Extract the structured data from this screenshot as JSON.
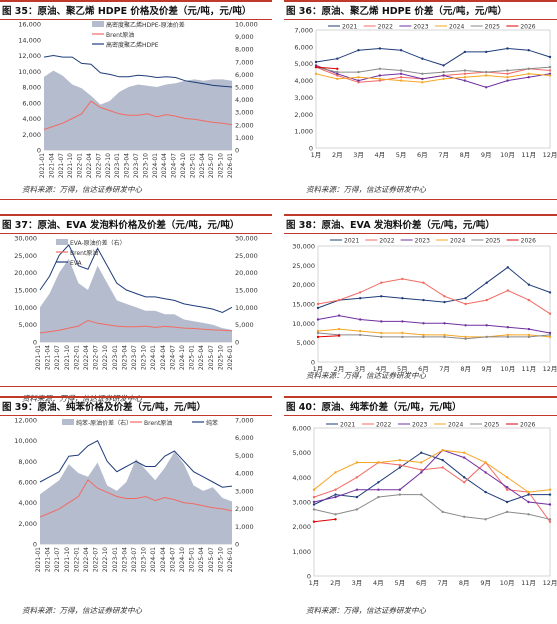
{
  "source_text": "资料来源：万得，信达证券研发中心",
  "panels": [
    {
      "id": "p35",
      "title": "图 35：原油、聚乙烯 HDPE 价格及价差（元/吨，元/吨）"
    },
    {
      "id": "p36",
      "title": "图 36：原油、聚乙烯 HDPE 价差（元/吨，元/吨）"
    },
    {
      "id": "p37",
      "title": "图 37：原油、EVA 发泡料价格及价差（元/吨，元/吨）"
    },
    {
      "id": "p38",
      "title": "图 38：原油、EVA 发泡料价差（元/吨，元/吨）"
    },
    {
      "id": "p39",
      "title": "图 39：原油、纯苯价格及价差（元/吨，元/吨）"
    },
    {
      "id": "p40",
      "title": "图 40：原油、纯苯价差（元/吨，元/吨）"
    }
  ],
  "colors": {
    "accent": "#c0392b",
    "spread": "#b4bccd",
    "brent": "#f26b63",
    "product": "#1f3d7a"
  },
  "chart_data": [
    {
      "type": "area",
      "x_ticks": [
        "2021-01",
        "2021-04",
        "2021-07",
        "2021-10",
        "2022-01",
        "2022-04",
        "2022-07",
        "2022-10",
        "2023-01",
        "2023-04",
        "2023-07",
        "2023-10",
        "2024-01",
        "2024-04",
        "2024-07",
        "2024-10",
        "2025-01",
        "2025-04",
        "2025-07",
        "2025-10",
        "2026-01"
      ],
      "ylim_left": [
        0,
        16000
      ],
      "yticks_left": [
        0,
        2000,
        4000,
        6000,
        8000,
        10000,
        12000,
        14000,
        16000
      ],
      "ylim_right": [
        0,
        10000
      ],
      "yticks_right": [
        0,
        1000,
        2000,
        3000,
        4000,
        5000,
        6000,
        7000,
        8000,
        9000,
        10000
      ],
      "series": [
        {
          "name": "高密度聚乙烯HDPE-原油价差",
          "axis": "right",
          "kind": "area",
          "color": "#b4bccd",
          "values": [
            5800,
            6300,
            5900,
            5200,
            4900,
            4300,
            3600,
            3900,
            4600,
            5000,
            5200,
            5100,
            5000,
            5200,
            5300,
            5500,
            5600,
            5500,
            5600,
            5600,
            5500
          ]
        },
        {
          "name": "Brent原油",
          "axis": "left",
          "kind": "line",
          "color": "#f26b63",
          "values": [
            2600,
            3000,
            3400,
            4000,
            4600,
            6200,
            5400,
            5000,
            4600,
            4400,
            4400,
            4600,
            4200,
            4500,
            4300,
            4000,
            3900,
            3700,
            3500,
            3400,
            3200
          ]
        },
        {
          "name": "高密度聚乙烯HDPE",
          "axis": "left",
          "kind": "line",
          "color": "#1f3d7a",
          "values": [
            11800,
            12000,
            11800,
            11800,
            11000,
            10900,
            9800,
            9600,
            9300,
            9300,
            9500,
            9400,
            9200,
            9300,
            9200,
            8800,
            8600,
            8400,
            8200,
            8100,
            8000
          ]
        }
      ],
      "legend_position": "top-center"
    },
    {
      "type": "line",
      "x_ticks": [
        "1月",
        "2月",
        "3月",
        "4月",
        "5月",
        "6月",
        "7月",
        "8月",
        "9月",
        "10月",
        "11月",
        "12月"
      ],
      "ylim": [
        0,
        7000
      ],
      "yticks": [
        0,
        1000,
        2000,
        3000,
        4000,
        5000,
        6000,
        7000
      ],
      "series": [
        {
          "name": "2021",
          "color": "#1f3d7a",
          "values": [
            5100,
            5300,
            5800,
            5900,
            5800,
            5300,
            4900,
            5700,
            5700,
            5900,
            5800,
            5400
          ]
        },
        {
          "name": "2022",
          "color": "#f26b63",
          "values": [
            4800,
            4300,
            3900,
            4000,
            4200,
            4100,
            4300,
            4400,
            4500,
            4400,
            4700,
            4600
          ]
        },
        {
          "name": "2023",
          "color": "#7030a0",
          "values": [
            4900,
            4400,
            4000,
            4300,
            4400,
            4100,
            4300,
            4000,
            3600,
            4000,
            4200,
            4400
          ]
        },
        {
          "name": "2024",
          "color": "#f5a623",
          "values": [
            4400,
            4100,
            4200,
            4100,
            4000,
            3900,
            4100,
            4200,
            4300,
            4200,
            4400,
            4300
          ]
        },
        {
          "name": "2025",
          "color": "#8a8a8a",
          "values": [
            4800,
            4500,
            4500,
            4700,
            4600,
            4400,
            4500,
            4600,
            4500,
            4600,
            4700,
            4800
          ]
        },
        {
          "name": "2026",
          "color": "#e00000",
          "values": [
            4800,
            4700
          ]
        }
      ],
      "legend_position": "top"
    },
    {
      "type": "area",
      "x_ticks": [
        "2021-01",
        "2021-04",
        "2021-07",
        "2021-10",
        "2022-01",
        "2022-04",
        "2022-07",
        "2022-10",
        "2023-01",
        "2023-04",
        "2023-07",
        "2023-10",
        "2024-01",
        "2024-04",
        "2024-07",
        "2024-10",
        "2025-01",
        "2025-04",
        "2025-07",
        "2025-10",
        "2026-01"
      ],
      "ylim_left": [
        0,
        30000
      ],
      "yticks_left": [
        0,
        5000,
        10000,
        15000,
        20000,
        25000,
        30000
      ],
      "ylim_right": [
        0,
        30000
      ],
      "yticks_right": [
        0,
        5000,
        10000,
        15000,
        20000,
        25000,
        30000
      ],
      "series": [
        {
          "name": "EVA-原油价差（右）",
          "axis": "right",
          "kind": "area",
          "color": "#b4bccd",
          "values": [
            10000,
            14000,
            20000,
            24000,
            17000,
            15000,
            22000,
            17000,
            12000,
            11000,
            10000,
            9000,
            9000,
            8000,
            8000,
            6500,
            6000,
            5500,
            5000,
            4000,
            3500
          ]
        },
        {
          "name": "Brent原油",
          "axis": "left",
          "kind": "line",
          "color": "#f26b63",
          "values": [
            2600,
            3000,
            3400,
            4000,
            4600,
            6200,
            5400,
            5000,
            4600,
            4400,
            4400,
            4600,
            4200,
            4500,
            4300,
            4000,
            3900,
            3700,
            3500,
            3400,
            3200
          ]
        },
        {
          "name": "EVA",
          "axis": "left",
          "kind": "line",
          "color": "#1f3d7a",
          "values": [
            15000,
            19000,
            25000,
            28000,
            22000,
            21000,
            27000,
            22000,
            17000,
            15000,
            14000,
            13000,
            13000,
            12500,
            12000,
            11000,
            10500,
            10000,
            9500,
            8500,
            10000
          ]
        }
      ],
      "legend_position": "top-left"
    },
    {
      "type": "line",
      "x_ticks": [
        "1月",
        "2月",
        "3月",
        "4月",
        "5月",
        "6月",
        "7月",
        "8月",
        "9月",
        "10月",
        "11月",
        "12月"
      ],
      "ylim": [
        0,
        30000
      ],
      "yticks": [
        0,
        5000,
        10000,
        15000,
        20000,
        25000,
        30000
      ],
      "series": [
        {
          "name": "2021",
          "color": "#1f3d7a",
          "values": [
            14000,
            16000,
            16500,
            17000,
            16500,
            16000,
            15500,
            16500,
            20500,
            24500,
            20000,
            18000
          ]
        },
        {
          "name": "2022",
          "color": "#f26b63",
          "values": [
            15000,
            16000,
            18000,
            20500,
            21500,
            20500,
            17000,
            15000,
            16000,
            18500,
            16000,
            12500
          ]
        },
        {
          "name": "2023",
          "color": "#7030a0",
          "values": [
            11000,
            12000,
            11000,
            10500,
            10500,
            10000,
            10000,
            9500,
            9500,
            9000,
            8500,
            7500
          ]
        },
        {
          "name": "2024",
          "color": "#f5a623",
          "values": [
            8000,
            8500,
            8000,
            7500,
            7500,
            7000,
            7000,
            6500,
            6500,
            7000,
            7000,
            6500
          ]
        },
        {
          "name": "2025",
          "color": "#8a8a8a",
          "values": [
            7500,
            7000,
            7000,
            6500,
            6500,
            6500,
            6500,
            6000,
            6500,
            6500,
            6500,
            7000
          ]
        },
        {
          "name": "2026",
          "color": "#e00000",
          "values": [
            6500,
            6800
          ]
        }
      ],
      "legend_position": "top"
    },
    {
      "type": "area",
      "x_ticks": [
        "2021-01",
        "2021-04",
        "2021-07",
        "2021-10",
        "2022-01",
        "2022-04",
        "2022-07",
        "2022-10",
        "2023-01",
        "2023-04",
        "2023-07",
        "2023-10",
        "2024-01",
        "2024-04",
        "2024-07",
        "2024-10",
        "2025-01",
        "2025-04",
        "2025-07",
        "2025-10",
        "2026-01"
      ],
      "ylim_left": [
        0,
        12000
      ],
      "yticks_left": [
        0,
        2000,
        4000,
        6000,
        8000,
        10000,
        12000
      ],
      "ylim_right": [
        0,
        7000
      ],
      "yticks_right": [
        0,
        1000,
        2000,
        3000,
        4000,
        5000,
        6000,
        7000
      ],
      "series": [
        {
          "name": "纯苯-原油价差（右）",
          "axis": "right",
          "kind": "area",
          "color": "#b4bccd",
          "values": [
            2800,
            3200,
            3600,
            4500,
            4000,
            3800,
            4600,
            3300,
            3000,
            3500,
            4800,
            4200,
            3600,
            4300,
            5200,
            4500,
            3300,
            3000,
            3200,
            2600,
            2400
          ]
        },
        {
          "name": "Brent原油",
          "axis": "left",
          "kind": "line",
          "color": "#f26b63",
          "values": [
            2600,
            3000,
            3400,
            4000,
            4600,
            6200,
            5400,
            5000,
            4600,
            4400,
            4400,
            4600,
            4200,
            4500,
            4300,
            4000,
            3900,
            3700,
            3500,
            3400,
            3200
          ]
        },
        {
          "name": "纯苯",
          "axis": "left",
          "kind": "line",
          "color": "#1f3d7a",
          "values": [
            6000,
            6500,
            7000,
            8500,
            8600,
            9500,
            10000,
            8000,
            7000,
            7500,
            8000,
            7500,
            7500,
            8500,
            9000,
            8000,
            7000,
            6500,
            6000,
            5500,
            5600
          ]
        }
      ],
      "legend_position": "top-center"
    },
    {
      "type": "line",
      "x_ticks": [
        "1月",
        "2月",
        "3月",
        "4月",
        "5月",
        "6月",
        "7月",
        "8月",
        "9月",
        "10月",
        "11月",
        "12月"
      ],
      "ylim": [
        0,
        6000
      ],
      "yticks": [
        0,
        1000,
        2000,
        3000,
        4000,
        5000,
        6000
      ],
      "series": [
        {
          "name": "2021",
          "color": "#1f3d7a",
          "values": [
            2900,
            3300,
            3200,
            3800,
            4400,
            5000,
            4700,
            4000,
            3400,
            3000,
            3300,
            3300
          ]
        },
        {
          "name": "2022",
          "color": "#f26b63",
          "values": [
            3200,
            3500,
            4000,
            4600,
            4500,
            4300,
            4400,
            3800,
            4600,
            3500,
            3400,
            2200
          ]
        },
        {
          "name": "2023",
          "color": "#7030a0",
          "values": [
            3000,
            3200,
            3500,
            3500,
            3500,
            4200,
            5100,
            4800,
            4200,
            3600,
            3000,
            2900
          ]
        },
        {
          "name": "2024",
          "color": "#f5a623",
          "values": [
            3500,
            4200,
            4600,
            4600,
            4700,
            4600,
            5100,
            5000,
            4600,
            4000,
            3400,
            3500
          ]
        },
        {
          "name": "2025",
          "color": "#8a8a8a",
          "values": [
            2700,
            2500,
            2700,
            3200,
            3300,
            3300,
            2600,
            2400,
            2300,
            2600,
            2500,
            2300
          ]
        },
        {
          "name": "2026",
          "color": "#e00000",
          "values": [
            2200,
            2300
          ]
        }
      ],
      "legend_position": "top"
    }
  ]
}
